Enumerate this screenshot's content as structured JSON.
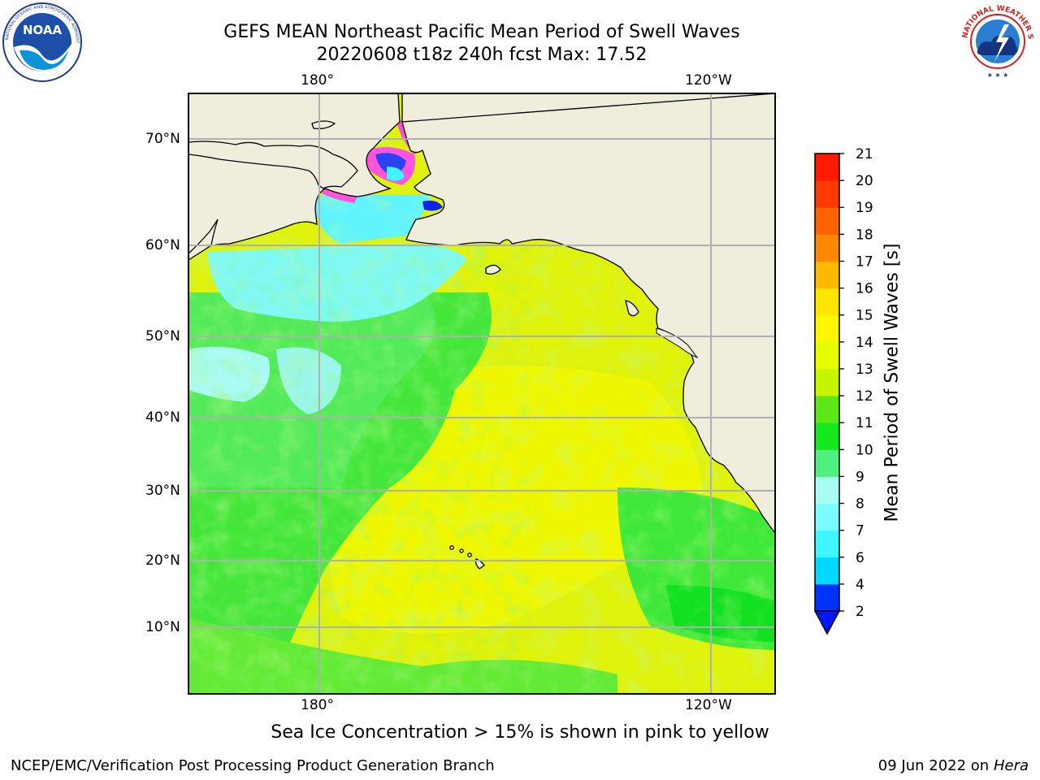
{
  "header": {
    "title_line1": "GEFS MEAN Northeast Pacific Mean Period of Swell Waves",
    "title_line2": "20220608 t18z 240h fcst   Max: 17.52"
  },
  "logos": {
    "noaa_text": "NOAA",
    "noaa_ring_text": "NATIONAL OCEANIC AND ATMOSPHERIC ADMINISTRATION · U.S. DEPARTMENT OF COMMERCE",
    "nws_ring_text": "NATIONAL WEATHER SERVICE"
  },
  "map": {
    "lon_labels_top": [
      "180°",
      "120°W"
    ],
    "lon_labels_bottom": [
      "180°",
      "120°W"
    ],
    "lat_labels": [
      "70°N",
      "60°N",
      "50°N",
      "40°N",
      "30°N",
      "20°N",
      "10°N"
    ],
    "land_color": "#efeedd",
    "grid_color": "#b0b0b0"
  },
  "colorbar": {
    "label": "Mean Period of Swell Waves [s]",
    "ticks": [
      "2",
      "4",
      "6",
      "7",
      "8",
      "9",
      "10",
      "11",
      "12",
      "13",
      "14",
      "15",
      "16",
      "17",
      "18",
      "19",
      "20",
      "21"
    ],
    "colors": [
      "#0033ff",
      "#00d9ff",
      "#3ff6ff",
      "#7bfdff",
      "#a9fdf0",
      "#4ff07f",
      "#15e81e",
      "#5ae617",
      "#c6f500",
      "#e7fc00",
      "#fcf700",
      "#ffe500",
      "#ffb800",
      "#ff8800",
      "#ff6200",
      "#ff3a00",
      "#ff1a00"
    ],
    "extend_color": "#0017ff"
  },
  "caption": "Sea Ice Concentration > 15% is shown in pink to yellow",
  "footer": {
    "left": "NCEP/EMC/Verification Post Processing Product Generation Branch",
    "right_date": "09 Jun 2022 on",
    "right_host": "Hera"
  }
}
